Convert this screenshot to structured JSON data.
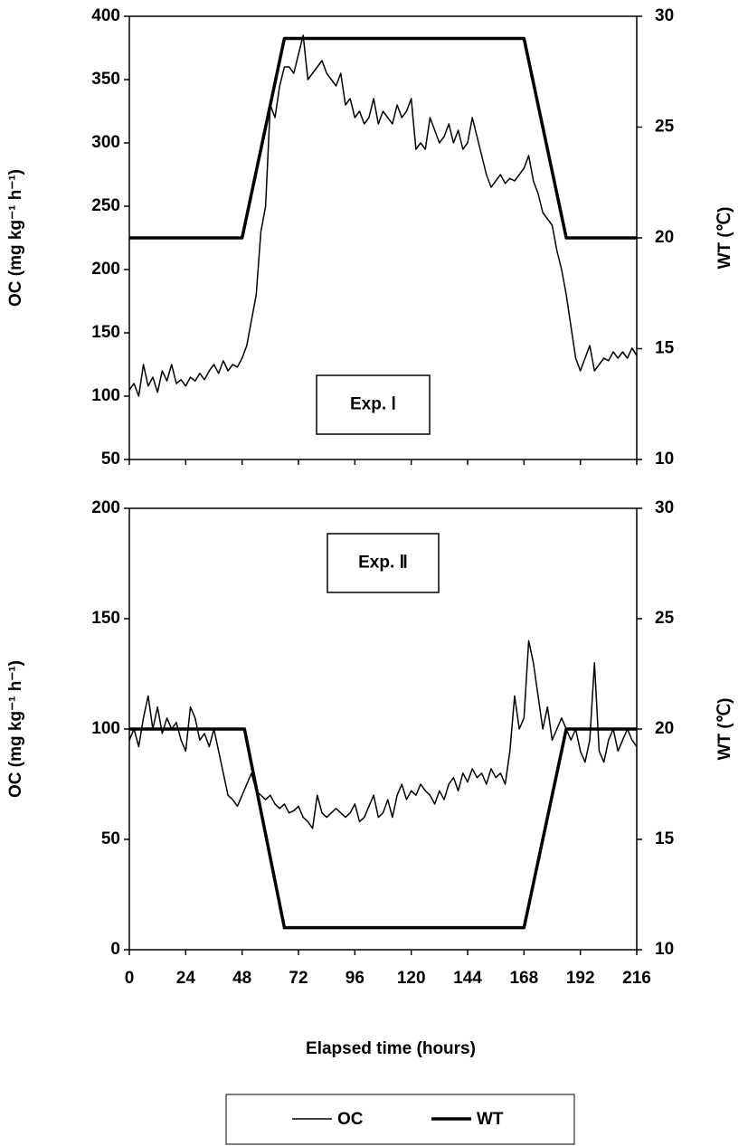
{
  "chart_data": [
    {
      "type": "line",
      "ylabel": "OC (mg kg⁻¹ h⁻¹)",
      "y2label": "WT (℃)",
      "annotation": "Exp. Ⅰ",
      "xtick_labels": false,
      "xlim": [
        0,
        216
      ],
      "xticks": [
        0,
        24,
        48,
        72,
        96,
        120,
        144,
        168,
        192,
        216
      ],
      "ylim": [
        50,
        400
      ],
      "yticks": [
        50,
        100,
        150,
        200,
        250,
        300,
        350,
        400
      ],
      "y2lim": [
        10,
        30
      ],
      "y2ticks": [
        10,
        15,
        20,
        25,
        30
      ],
      "x": [
        0,
        2,
        4,
        6,
        8,
        10,
        12,
        14,
        16,
        18,
        20,
        22,
        24,
        26,
        28,
        30,
        32,
        34,
        36,
        38,
        40,
        42,
        44,
        46,
        48,
        50,
        52,
        54,
        56,
        58,
        60,
        62,
        64,
        66,
        68,
        70,
        72,
        74,
        76,
        78,
        80,
        82,
        84,
        86,
        88,
        90,
        92,
        94,
        96,
        98,
        100,
        102,
        104,
        106,
        108,
        110,
        112,
        114,
        116,
        118,
        120,
        122,
        124,
        126,
        128,
        130,
        132,
        134,
        136,
        138,
        140,
        142,
        144,
        146,
        148,
        150,
        152,
        154,
        156,
        158,
        160,
        162,
        164,
        166,
        168,
        170,
        172,
        174,
        176,
        178,
        180,
        182,
        184,
        186,
        188,
        190,
        192,
        194,
        196,
        198,
        200,
        202,
        204,
        206,
        208,
        210,
        212,
        214,
        216
      ],
      "series": [
        {
          "color": "#000000",
          "width": 1.5,
          "values": [
            105,
            110,
            100,
            125,
            108,
            115,
            103,
            120,
            112,
            125,
            110,
            113,
            108,
            115,
            112,
            118,
            113,
            120,
            125,
            118,
            128,
            120,
            125,
            123,
            130,
            140,
            160,
            180,
            230,
            250,
            330,
            320,
            345,
            360,
            360,
            355,
            370,
            385,
            350,
            355,
            360,
            365,
            355,
            350,
            345,
            355,
            330,
            335,
            320,
            325,
            315,
            320,
            335,
            315,
            325,
            320,
            315,
            330,
            320,
            325,
            335,
            295,
            300,
            295,
            320,
            310,
            300,
            305,
            315,
            300,
            310,
            295,
            300,
            320,
            305,
            290,
            275,
            265,
            270,
            275,
            268,
            272,
            270,
            275,
            280,
            290,
            270,
            260,
            245,
            240,
            235,
            215,
            200,
            180,
            155,
            130,
            120,
            130,
            140,
            120,
            125,
            130,
            128,
            135,
            130,
            135,
            130,
            138,
            132
          ]
        },
        {
          "color": "#000000",
          "width": 3.5,
          "axis": "y2",
          "x": [
            0,
            48,
            66,
            168,
            186,
            216
          ],
          "values": [
            20,
            20,
            29,
            29,
            20,
            20
          ]
        }
      ]
    },
    {
      "type": "line",
      "ylabel": "OC (mg kg⁻¹ h⁻¹)",
      "y2label": "WT (℃)",
      "annotation": "Exp. Ⅱ",
      "xtick_labels": true,
      "xlabel": "Elapsed time (hours)",
      "xlim": [
        0,
        216
      ],
      "xticks": [
        0,
        24,
        48,
        72,
        96,
        120,
        144,
        168,
        192,
        216
      ],
      "ylim": [
        0,
        200
      ],
      "yticks": [
        0,
        50,
        100,
        150,
        200
      ],
      "y2lim": [
        10,
        30
      ],
      "y2ticks": [
        10,
        15,
        20,
        25,
        30
      ],
      "x": [
        0,
        2,
        4,
        6,
        8,
        10,
        12,
        14,
        16,
        18,
        20,
        22,
        24,
        26,
        28,
        30,
        32,
        34,
        36,
        38,
        40,
        42,
        44,
        46,
        48,
        50,
        52,
        54,
        56,
        58,
        60,
        62,
        64,
        66,
        68,
        70,
        72,
        74,
        76,
        78,
        80,
        82,
        84,
        86,
        88,
        90,
        92,
        94,
        96,
        98,
        100,
        102,
        104,
        106,
        108,
        110,
        112,
        114,
        116,
        118,
        120,
        122,
        124,
        126,
        128,
        130,
        132,
        134,
        136,
        138,
        140,
        142,
        144,
        146,
        148,
        150,
        152,
        154,
        156,
        158,
        160,
        162,
        164,
        166,
        168,
        170,
        172,
        174,
        176,
        178,
        180,
        182,
        184,
        186,
        188,
        190,
        192,
        194,
        196,
        198,
        200,
        202,
        204,
        206,
        208,
        210,
        212,
        214,
        216
      ],
      "series": [
        {
          "name": "OC",
          "color": "#000000",
          "width": 1.5,
          "values": [
            95,
            100,
            92,
            105,
            115,
            100,
            110,
            98,
            105,
            100,
            103,
            95,
            90,
            110,
            105,
            95,
            98,
            92,
            100,
            90,
            80,
            70,
            68,
            65,
            70,
            75,
            80,
            72,
            70,
            68,
            70,
            66,
            64,
            66,
            62,
            63,
            65,
            60,
            58,
            55,
            70,
            62,
            60,
            62,
            64,
            62,
            60,
            62,
            66,
            58,
            60,
            65,
            70,
            60,
            62,
            68,
            60,
            70,
            75,
            68,
            72,
            70,
            75,
            72,
            70,
            66,
            72,
            68,
            75,
            78,
            72,
            80,
            76,
            82,
            78,
            80,
            75,
            82,
            78,
            80,
            75,
            90,
            115,
            100,
            105,
            140,
            130,
            115,
            100,
            110,
            95,
            100,
            105,
            100,
            95,
            100,
            90,
            85,
            95,
            130,
            90,
            85,
            95,
            100,
            90,
            95,
            100,
            95,
            92
          ]
        },
        {
          "name": "WT",
          "color": "#000000",
          "width": 3.5,
          "axis": "y2",
          "x": [
            0,
            49,
            66,
            168,
            186,
            216
          ],
          "values": [
            20,
            20,
            11,
            11,
            20,
            20
          ]
        }
      ]
    }
  ]
}
